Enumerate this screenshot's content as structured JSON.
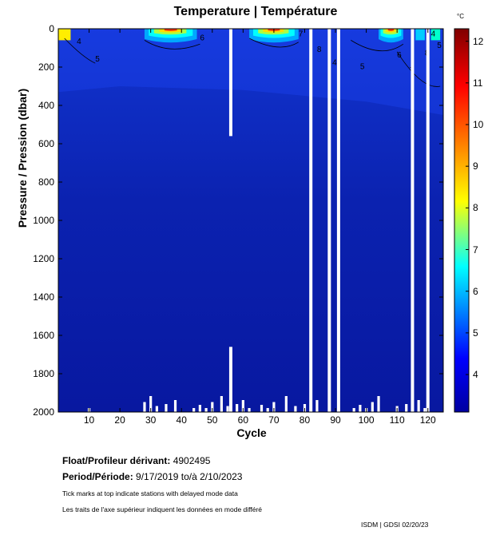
{
  "chart_data": {
    "type": "heatmap",
    "title": "Temperature | Température",
    "xlabel": "Cycle",
    "ylabel": "Pressure / Pression (dbar)",
    "x_range": [
      0,
      125
    ],
    "y_range": [
      0,
      2000
    ],
    "y_inverted": true,
    "xticks": [
      "10",
      "20",
      "30",
      "40",
      "50",
      "60",
      "70",
      "80",
      "90",
      "100",
      "110",
      "120"
    ],
    "yticks": [
      "0",
      "200",
      "400",
      "600",
      "800",
      "1000",
      "1200",
      "1400",
      "1600",
      "1800",
      "2000"
    ],
    "colorbar": {
      "unit": "°C",
      "min": 3.1,
      "max": 12.3,
      "ticks": [
        "4",
        "5",
        "6",
        "7",
        "8",
        "9",
        "10",
        "11",
        "12"
      ],
      "colors": [
        "#0000a0",
        "#0000ff",
        "#00ffff",
        "#ffff00",
        "#ff0000",
        "#800000"
      ]
    },
    "contour_labels": [
      "4",
      "5",
      "6",
      "7",
      "8"
    ],
    "gaps_cycles": [
      56,
      82,
      88,
      91,
      115,
      120
    ],
    "surface_warm_cycles": [
      [
        28,
        45
      ],
      [
        62,
        78
      ],
      [
        104,
        112
      ]
    ]
  },
  "info": {
    "float_label": "Float/Profileur dérivant:",
    "float_value": "4902495",
    "period_label": "Period/Période:",
    "period_value": "9/17/2019  to/à  2/10/2023",
    "note_en": "Tick marks at top indicate stations with delayed mode data",
    "note_fr": "Les traits de l'axe supérieur indiquent les données en mode différé",
    "credit": "ISDM | GDSI  02/20/23"
  }
}
